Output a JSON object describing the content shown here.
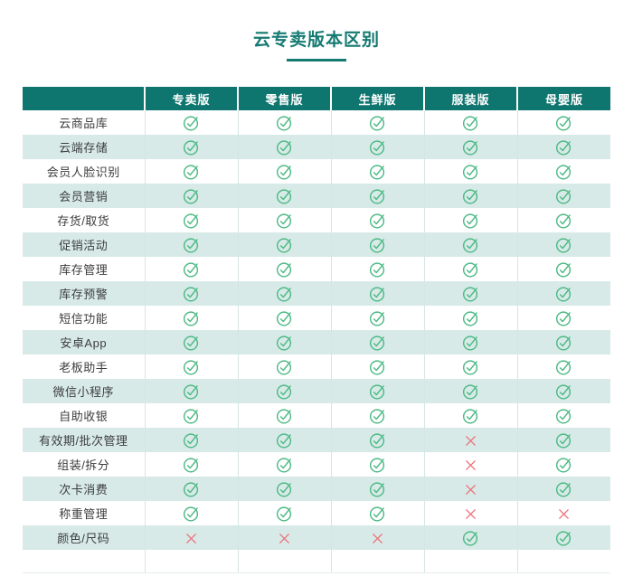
{
  "title": "云专卖版本区别",
  "table": {
    "feature_header": "",
    "columns": [
      "专卖版",
      "零售版",
      "生鲜版",
      "服装版",
      "母婴版"
    ],
    "rows": [
      {
        "label": "云商品库",
        "values": [
          "check",
          "check",
          "check",
          "check",
          "check"
        ]
      },
      {
        "label": "云端存储",
        "values": [
          "check",
          "check",
          "check",
          "check",
          "check"
        ]
      },
      {
        "label": "会员人脸识别",
        "values": [
          "check",
          "check",
          "check",
          "check",
          "check"
        ]
      },
      {
        "label": "会员营销",
        "values": [
          "check",
          "check",
          "check",
          "check",
          "check"
        ]
      },
      {
        "label": "存货/取货",
        "values": [
          "check",
          "check",
          "check",
          "check",
          "check"
        ]
      },
      {
        "label": "促销活动",
        "values": [
          "check",
          "check",
          "check",
          "check",
          "check"
        ]
      },
      {
        "label": "库存管理",
        "values": [
          "check",
          "check",
          "check",
          "check",
          "check"
        ]
      },
      {
        "label": "库存预警",
        "values": [
          "check",
          "check",
          "check",
          "check",
          "check"
        ]
      },
      {
        "label": "短信功能",
        "values": [
          "check",
          "check",
          "check",
          "check",
          "check"
        ]
      },
      {
        "label": "安卓App",
        "values": [
          "check",
          "check",
          "check",
          "check",
          "check"
        ]
      },
      {
        "label": "老板助手",
        "values": [
          "check",
          "check",
          "check",
          "check",
          "check"
        ]
      },
      {
        "label": "微信小程序",
        "values": [
          "check",
          "check",
          "check",
          "check",
          "check"
        ]
      },
      {
        "label": "自助收银",
        "values": [
          "check",
          "check",
          "check",
          "check",
          "check"
        ]
      },
      {
        "label": "有效期/批次管理",
        "values": [
          "check",
          "check",
          "check",
          "cross",
          "check"
        ]
      },
      {
        "label": "组装/拆分",
        "values": [
          "check",
          "check",
          "check",
          "cross",
          "check"
        ]
      },
      {
        "label": "次卡消费",
        "values": [
          "check",
          "check",
          "check",
          "cross",
          "check"
        ]
      },
      {
        "label": "称重管理",
        "values": [
          "check",
          "check",
          "check",
          "cross",
          "cross"
        ]
      },
      {
        "label": "颜色/尺码",
        "values": [
          "cross",
          "cross",
          "cross",
          "check",
          "check"
        ]
      }
    ]
  },
  "icons": {
    "check": "check-circle-icon",
    "cross": "x-icon"
  },
  "colors": {
    "header_bg": "#0e756f",
    "title_text": "#157a72",
    "row_alt_bg": "#d7eae8",
    "separator": "#d5e6e4",
    "label_text": "#3d3d3d",
    "check_green": "#4eba85",
    "cross_red": "#ee6f78"
  }
}
